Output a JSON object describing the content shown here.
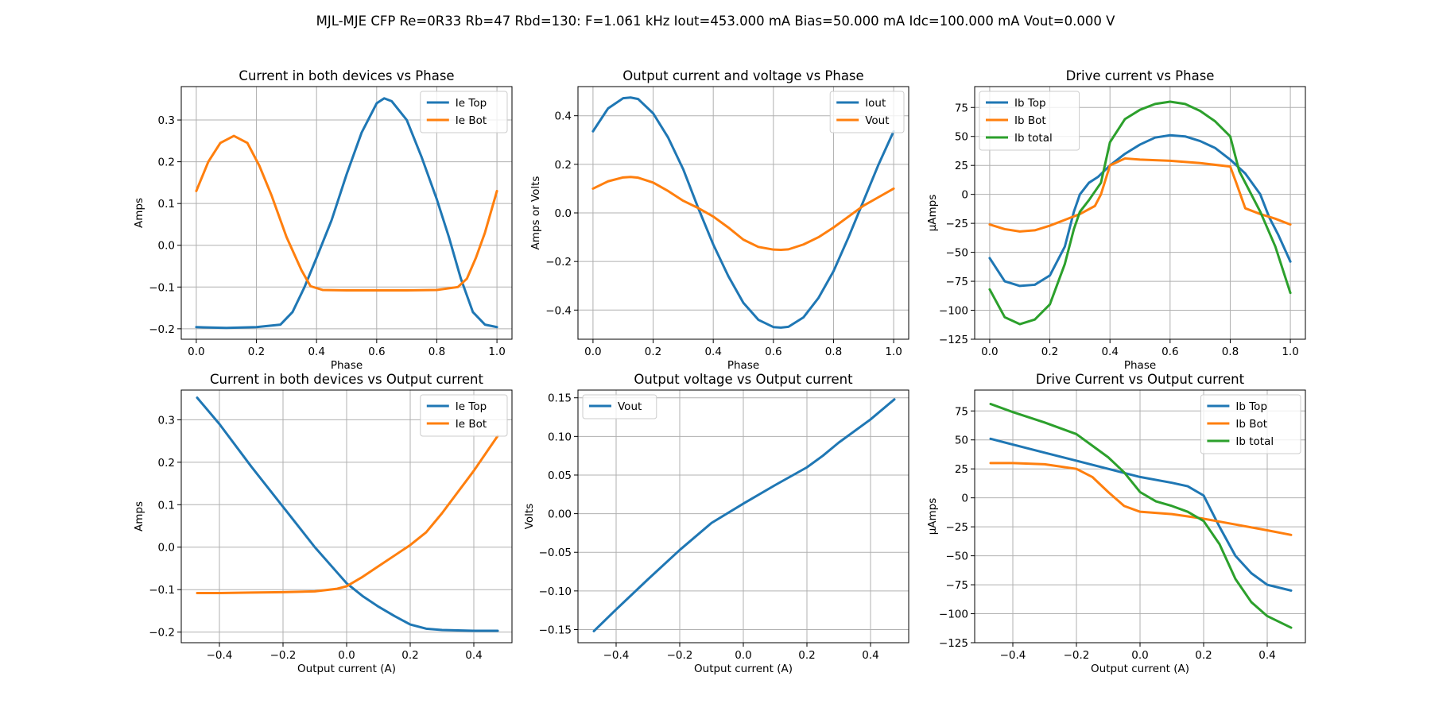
{
  "figure": {
    "suptitle": "MJL-MJE CFP Re=0R33 Rb=47 Rbd=130: F=1.061 kHz Iout=453.000 mA Bias=50.000 mA Idc=100.000 mA Vout=0.000 V"
  },
  "colors": {
    "C0": "#1f77b4",
    "C1": "#ff7f0e",
    "C2": "#2ca02c"
  },
  "chart_data": [
    {
      "type": "line",
      "title": "Current in both devices vs Phase",
      "xlabel": "Phase",
      "ylabel": "Amps",
      "xlim": [
        -0.05,
        1.05
      ],
      "ylim": [
        -0.225,
        0.38
      ],
      "xticks": [
        0.0,
        0.2,
        0.4,
        0.6,
        0.8,
        1.0
      ],
      "xtick_labels": [
        "0.0",
        "0.2",
        "0.4",
        "0.6",
        "0.8",
        "1.0"
      ],
      "yticks": [
        -0.2,
        -0.1,
        0.0,
        0.1,
        0.2,
        0.3
      ],
      "ytick_labels": [
        "−0.2",
        "−0.1",
        "0.0",
        "0.1",
        "0.2",
        "0.3"
      ],
      "grid": true,
      "legend": "upper right",
      "series": [
        {
          "name": "Ie Top",
          "color": "#1f77b4",
          "x": [
            0,
            0.1,
            0.2,
            0.28,
            0.32,
            0.36,
            0.4,
            0.45,
            0.5,
            0.55,
            0.6,
            0.625,
            0.65,
            0.7,
            0.75,
            0.8,
            0.84,
            0.88,
            0.92,
            0.96,
            1.0
          ],
          "y": [
            -0.196,
            -0.198,
            -0.196,
            -0.19,
            -0.16,
            -0.1,
            -0.03,
            0.06,
            0.17,
            0.27,
            0.34,
            0.352,
            0.345,
            0.3,
            0.21,
            0.11,
            0.02,
            -0.08,
            -0.16,
            -0.19,
            -0.196
          ]
        },
        {
          "name": "Ie Bot",
          "color": "#ff7f0e",
          "x": [
            0,
            0.04,
            0.08,
            0.125,
            0.17,
            0.21,
            0.25,
            0.3,
            0.35,
            0.38,
            0.42,
            0.5,
            0.6,
            0.7,
            0.8,
            0.87,
            0.9,
            0.93,
            0.96,
            1.0
          ],
          "y": [
            0.13,
            0.2,
            0.245,
            0.262,
            0.245,
            0.19,
            0.12,
            0.02,
            -0.06,
            -0.098,
            -0.107,
            -0.108,
            -0.108,
            -0.108,
            -0.107,
            -0.1,
            -0.08,
            -0.03,
            0.03,
            0.13
          ]
        }
      ]
    },
    {
      "type": "line",
      "title": "Output current and voltage vs Phase",
      "xlabel": "Phase",
      "ylabel": "Amps or Volts",
      "xlim": [
        -0.05,
        1.05
      ],
      "ylim": [
        -0.52,
        0.52
      ],
      "xticks": [
        0.0,
        0.2,
        0.4,
        0.6,
        0.8,
        1.0
      ],
      "xtick_labels": [
        "0.0",
        "0.2",
        "0.4",
        "0.6",
        "0.8",
        "1.0"
      ],
      "yticks": [
        -0.4,
        -0.2,
        0.0,
        0.2,
        0.4
      ],
      "ytick_labels": [
        "−0.4",
        "−0.2",
        "0.0",
        "0.2",
        "0.4"
      ],
      "grid": true,
      "legend": "upper right",
      "series": [
        {
          "name": "Iout",
          "color": "#1f77b4",
          "x": [
            0,
            0.05,
            0.1,
            0.125,
            0.15,
            0.2,
            0.25,
            0.3,
            0.35,
            0.4,
            0.45,
            0.5,
            0.55,
            0.6,
            0.625,
            0.65,
            0.7,
            0.75,
            0.8,
            0.85,
            0.9,
            0.95,
            1.0
          ],
          "y": [
            0.336,
            0.43,
            0.472,
            0.475,
            0.469,
            0.41,
            0.31,
            0.18,
            0.02,
            -0.13,
            -0.26,
            -0.37,
            -0.44,
            -0.47,
            -0.472,
            -0.469,
            -0.43,
            -0.35,
            -0.24,
            -0.1,
            0.05,
            0.2,
            0.336
          ]
        },
        {
          "name": "Vout",
          "color": "#ff7f0e",
          "x": [
            0,
            0.05,
            0.1,
            0.125,
            0.15,
            0.2,
            0.25,
            0.3,
            0.35,
            0.4,
            0.45,
            0.5,
            0.55,
            0.6,
            0.625,
            0.65,
            0.7,
            0.75,
            0.8,
            0.85,
            0.9,
            0.95,
            1.0
          ],
          "y": [
            0.1,
            0.13,
            0.146,
            0.148,
            0.145,
            0.125,
            0.09,
            0.05,
            0.02,
            -0.015,
            -0.06,
            -0.11,
            -0.14,
            -0.151,
            -0.152,
            -0.15,
            -0.13,
            -0.1,
            -0.06,
            -0.015,
            0.03,
            0.065,
            0.1
          ]
        }
      ]
    },
    {
      "type": "line",
      "title": "Drive current vs Phase",
      "xlabel": "Phase",
      "ylabel": "µAmps",
      "xlim": [
        -0.05,
        1.05
      ],
      "ylim": [
        -125,
        93
      ],
      "xticks": [
        0.0,
        0.2,
        0.4,
        0.6,
        0.8,
        1.0
      ],
      "xtick_labels": [
        "0.0",
        "0.2",
        "0.4",
        "0.6",
        "0.8",
        "1.0"
      ],
      "yticks": [
        -125,
        -100,
        -75,
        -50,
        -25,
        0,
        25,
        50,
        75
      ],
      "ytick_labels": [
        "−125",
        "−100",
        "−75",
        "−50",
        "−25",
        "0",
        "25",
        "50",
        "75"
      ],
      "grid": true,
      "legend": "upper left",
      "series": [
        {
          "name": "Ib Top",
          "color": "#1f77b4",
          "x": [
            0,
            0.05,
            0.1,
            0.15,
            0.2,
            0.25,
            0.28,
            0.3,
            0.33,
            0.36,
            0.4,
            0.45,
            0.5,
            0.55,
            0.6,
            0.65,
            0.7,
            0.75,
            0.8,
            0.85,
            0.9,
            0.93,
            0.96,
            1.0
          ],
          "y": [
            -55,
            -75,
            -79,
            -78,
            -70,
            -45,
            -15,
            0,
            10,
            15,
            25,
            35,
            43,
            49,
            51,
            50,
            46,
            40,
            30,
            18,
            0,
            -20,
            -35,
            -58
          ]
        },
        {
          "name": "Ib Bot",
          "color": "#ff7f0e",
          "x": [
            0,
            0.05,
            0.1,
            0.15,
            0.2,
            0.25,
            0.3,
            0.35,
            0.37,
            0.4,
            0.45,
            0.5,
            0.6,
            0.7,
            0.8,
            0.82,
            0.85,
            0.9,
            0.95,
            1.0
          ],
          "y": [
            -26,
            -30,
            -32,
            -31,
            -27,
            -22,
            -17,
            -10,
            0,
            25,
            31,
            30,
            29,
            27,
            24,
            10,
            -12,
            -17,
            -21,
            -26
          ]
        },
        {
          "name": "Ib total",
          "color": "#2ca02c",
          "x": [
            0,
            0.05,
            0.1,
            0.15,
            0.2,
            0.25,
            0.28,
            0.3,
            0.33,
            0.37,
            0.4,
            0.45,
            0.5,
            0.55,
            0.6,
            0.65,
            0.7,
            0.75,
            0.8,
            0.83,
            0.86,
            0.9,
            0.95,
            1.0
          ],
          "y": [
            -82,
            -106,
            -112,
            -108,
            -95,
            -60,
            -30,
            -15,
            -5,
            10,
            45,
            65,
            73,
            78,
            80,
            78,
            72,
            63,
            50,
            20,
            5,
            -15,
            -45,
            -85
          ]
        }
      ]
    },
    {
      "type": "line",
      "title": "Current in both devices vs Output current",
      "xlabel": "Output current (A)",
      "ylabel": "Amps",
      "xlim": [
        -0.52,
        0.52
      ],
      "ylim": [
        -0.225,
        0.37
      ],
      "xticks": [
        -0.4,
        -0.2,
        0.0,
        0.2,
        0.4
      ],
      "xtick_labels": [
        "−0.4",
        "−0.2",
        "0.0",
        "0.2",
        "0.4"
      ],
      "yticks": [
        -0.2,
        -0.1,
        0.0,
        0.1,
        0.2,
        0.3
      ],
      "ytick_labels": [
        "−0.2",
        "−0.1",
        "0.0",
        "0.1",
        "0.2",
        "0.3"
      ],
      "grid": true,
      "legend": "upper right",
      "series": [
        {
          "name": "Ie Top",
          "color": "#1f77b4",
          "x": [
            -0.47,
            -0.4,
            -0.3,
            -0.2,
            -0.1,
            0.0,
            0.05,
            0.1,
            0.15,
            0.2,
            0.25,
            0.3,
            0.4,
            0.475
          ],
          "y": [
            0.352,
            0.29,
            0.19,
            0.095,
            0.0,
            -0.085,
            -0.115,
            -0.14,
            -0.162,
            -0.182,
            -0.192,
            -0.195,
            -0.197,
            -0.197
          ]
        },
        {
          "name": "Ie Bot",
          "color": "#ff7f0e",
          "x": [
            -0.47,
            -0.4,
            -0.3,
            -0.2,
            -0.1,
            -0.03,
            0.0,
            0.05,
            0.1,
            0.15,
            0.2,
            0.25,
            0.3,
            0.35,
            0.4,
            0.475
          ],
          "y": [
            -0.108,
            -0.108,
            -0.107,
            -0.106,
            -0.104,
            -0.098,
            -0.092,
            -0.07,
            -0.045,
            -0.02,
            0.005,
            0.035,
            0.08,
            0.13,
            0.18,
            0.262
          ]
        }
      ]
    },
    {
      "type": "line",
      "title": "Output voltage vs Output current",
      "xlabel": "Output current (A)",
      "ylabel": "Volts",
      "xlim": [
        -0.52,
        0.52
      ],
      "ylim": [
        -0.167,
        0.16
      ],
      "xticks": [
        -0.4,
        -0.2,
        0.0,
        0.2,
        0.4
      ],
      "xtick_labels": [
        "−0.4",
        "−0.2",
        "0.0",
        "0.2",
        "0.4"
      ],
      "yticks": [
        -0.15,
        -0.1,
        -0.05,
        0.0,
        0.05,
        0.1,
        0.15
      ],
      "ytick_labels": [
        "−0.15",
        "−0.10",
        "−0.05",
        "0.00",
        "0.05",
        "0.10",
        "0.15"
      ],
      "grid": true,
      "legend": "upper left",
      "series": [
        {
          "name": "Vout",
          "color": "#1f77b4",
          "x": [
            -0.47,
            -0.4,
            -0.3,
            -0.2,
            -0.1,
            0.0,
            0.1,
            0.2,
            0.25,
            0.3,
            0.4,
            0.475
          ],
          "y": [
            -0.152,
            -0.124,
            -0.085,
            -0.047,
            -0.012,
            0.013,
            0.037,
            0.06,
            0.075,
            0.092,
            0.122,
            0.148
          ]
        }
      ]
    },
    {
      "type": "line",
      "title": "Drive Current vs Output current",
      "xlabel": "Output current (A)",
      "ylabel": "µAmps",
      "xlim": [
        -0.52,
        0.52
      ],
      "ylim": [
        -125,
        93
      ],
      "xticks": [
        -0.4,
        -0.2,
        0.0,
        0.2,
        0.4
      ],
      "xtick_labels": [
        "−0.4",
        "−0.2",
        "0.0",
        "0.2",
        "0.4"
      ],
      "yticks": [
        -125,
        -100,
        -75,
        -50,
        -25,
        0,
        25,
        50,
        75
      ],
      "ytick_labels": [
        "−125",
        "−100",
        "−75",
        "−50",
        "−25",
        "0",
        "25",
        "50",
        "75"
      ],
      "grid": true,
      "legend": "upper right",
      "series": [
        {
          "name": "Ib Top",
          "color": "#1f77b4",
          "x": [
            -0.47,
            -0.4,
            -0.3,
            -0.2,
            -0.1,
            0.0,
            0.1,
            0.15,
            0.2,
            0.25,
            0.3,
            0.35,
            0.4,
            0.475
          ],
          "y": [
            51,
            46,
            39,
            32,
            25,
            18,
            13,
            10,
            2,
            -25,
            -50,
            -65,
            -75,
            -80
          ]
        },
        {
          "name": "Ib Bot",
          "color": "#ff7f0e",
          "x": [
            -0.47,
            -0.4,
            -0.3,
            -0.2,
            -0.15,
            -0.1,
            -0.05,
            0.0,
            0.1,
            0.2,
            0.3,
            0.4,
            0.475
          ],
          "y": [
            30,
            30,
            29,
            25,
            18,
            5,
            -7,
            -12,
            -14,
            -18,
            -23,
            -28,
            -32
          ]
        },
        {
          "name": "Ib total",
          "color": "#2ca02c",
          "x": [
            -0.47,
            -0.4,
            -0.3,
            -0.2,
            -0.15,
            -0.1,
            -0.05,
            0.0,
            0.05,
            0.1,
            0.15,
            0.2,
            0.25,
            0.3,
            0.35,
            0.4,
            0.475
          ],
          "y": [
            81,
            74,
            65,
            55,
            45,
            35,
            22,
            5,
            -3,
            -7,
            -12,
            -20,
            -40,
            -70,
            -90,
            -102,
            -112
          ]
        }
      ]
    }
  ]
}
